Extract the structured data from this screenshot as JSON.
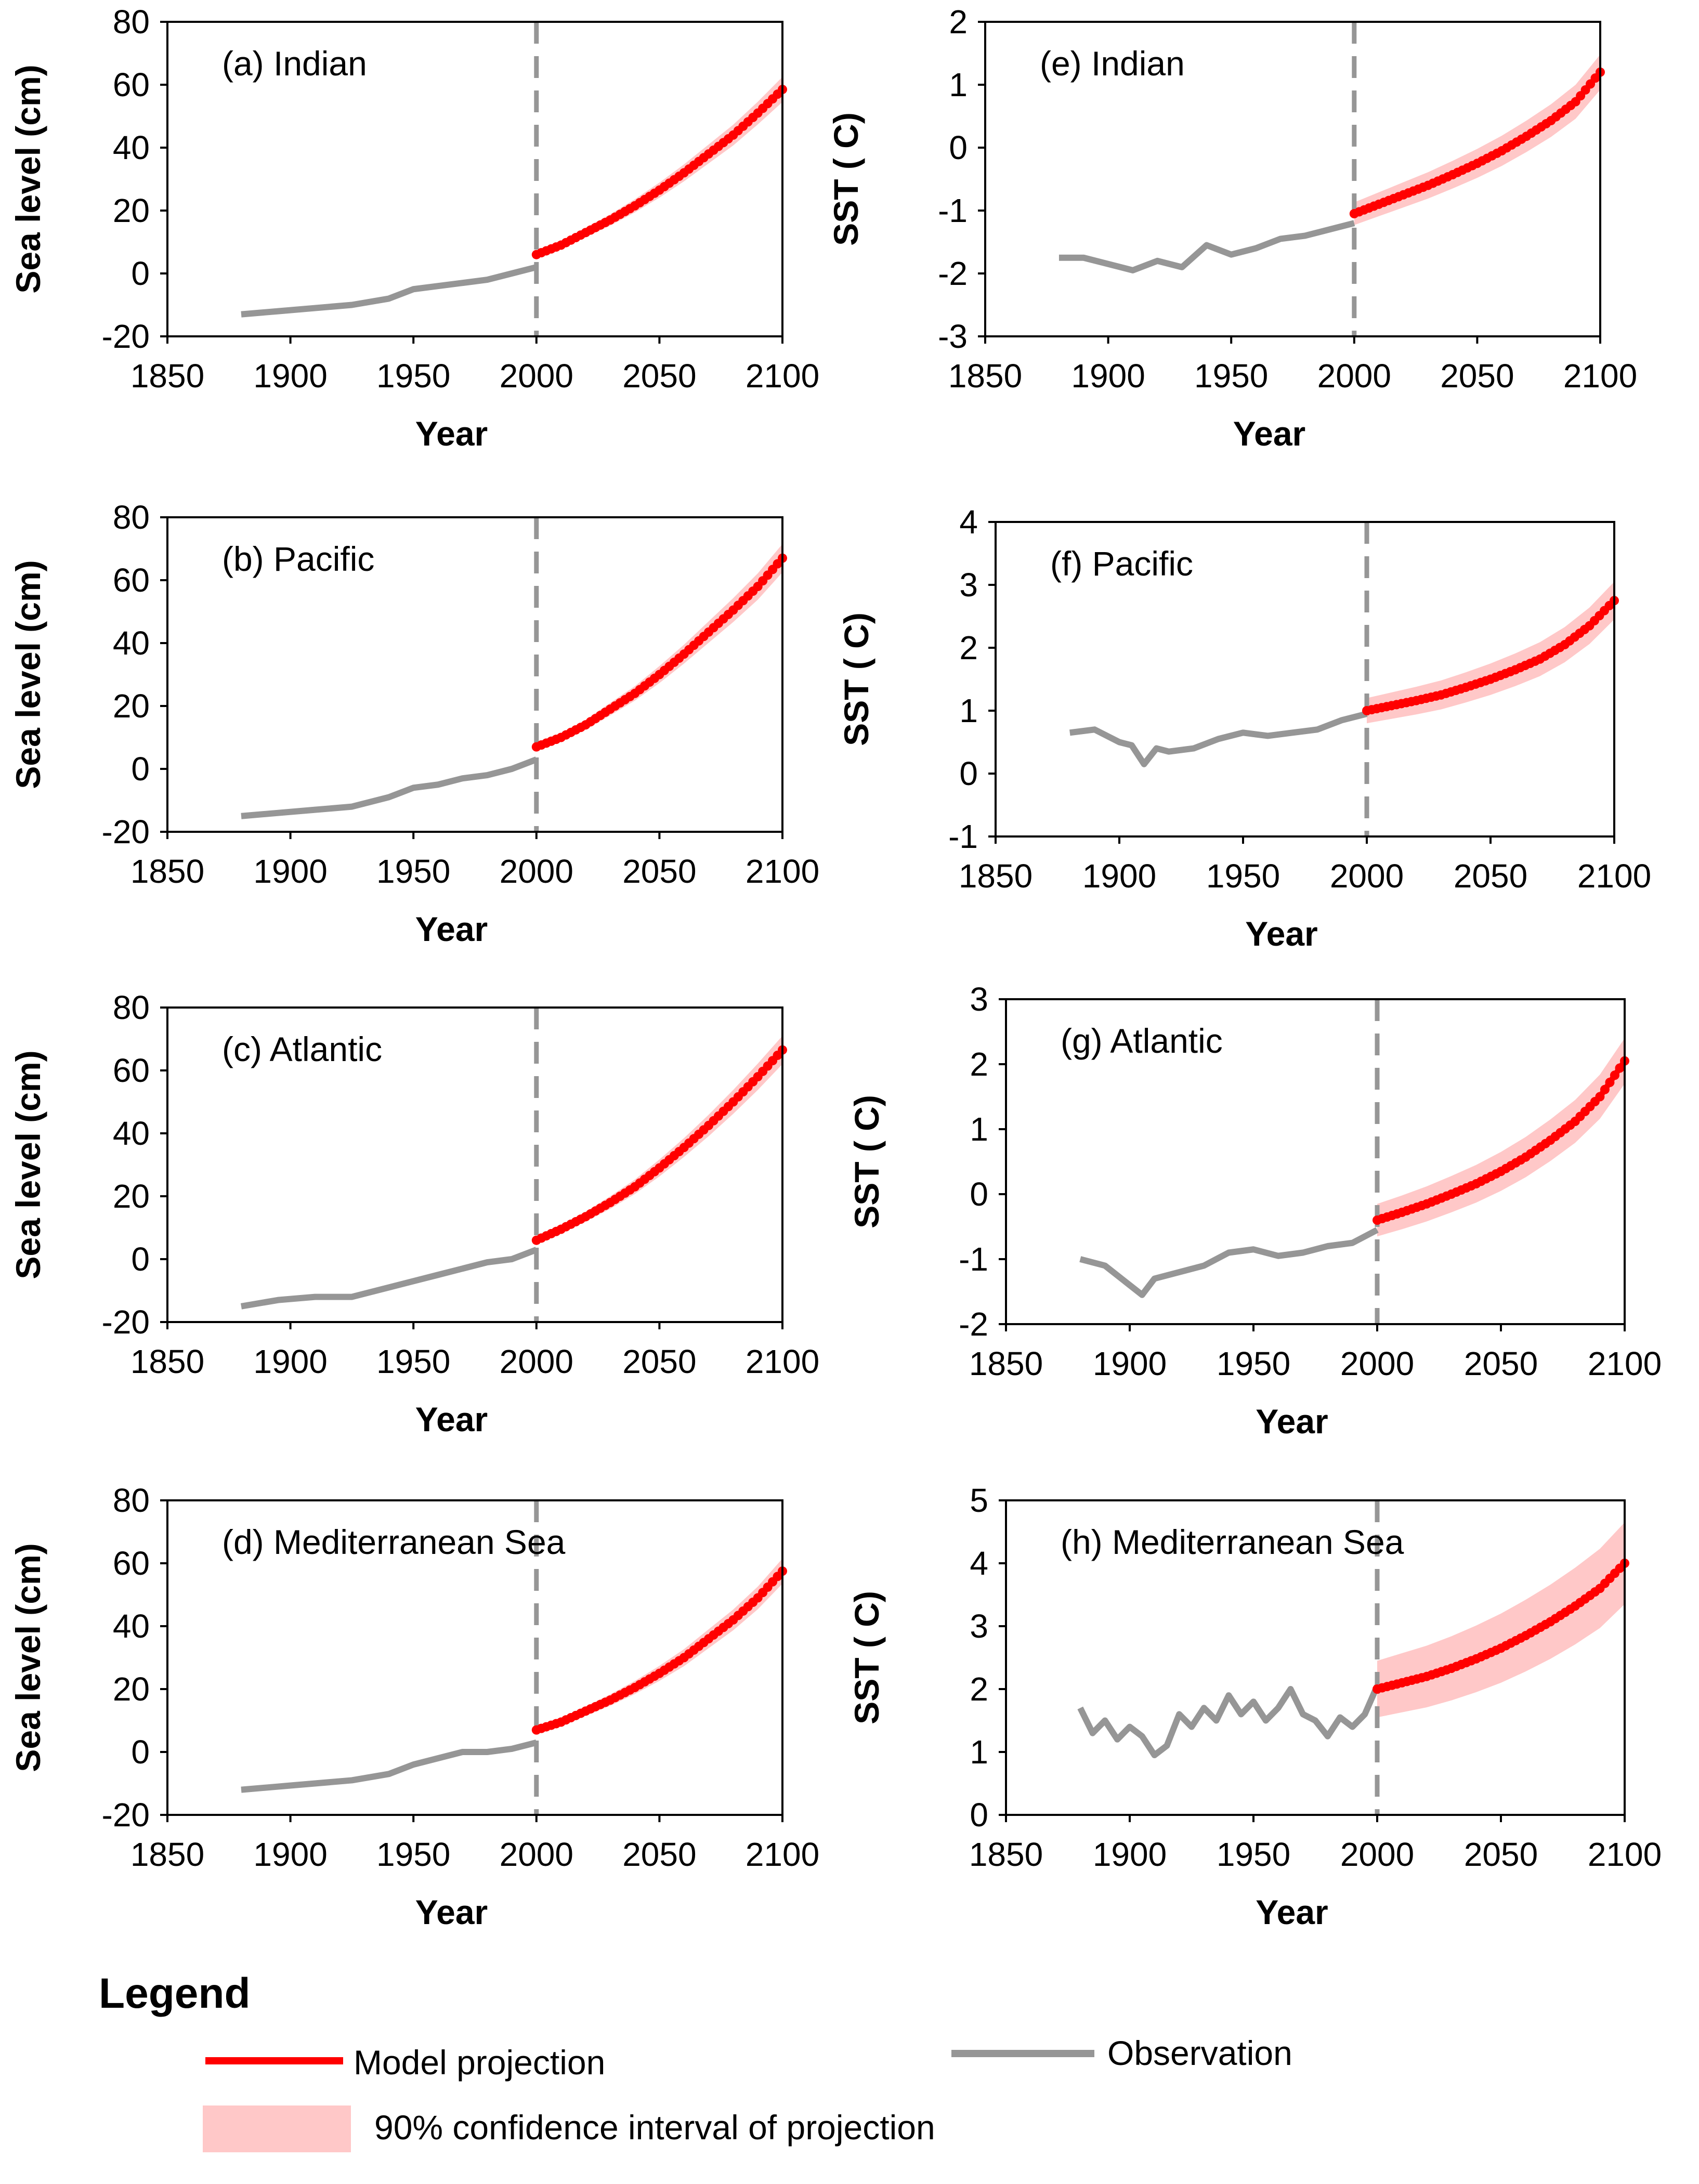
{
  "colors": {
    "model": "#ff0000",
    "ci": "#ffc8c8",
    "observation": "#969696",
    "axis": "#000000"
  },
  "legend": {
    "title": "Legend",
    "model": "Model projection",
    "observation": "Observation",
    "ci": "90% confidence interval of projection"
  },
  "chart_data": [
    {
      "id": "a",
      "type": "line",
      "label": "(a) Indian",
      "ylabel": "Sea level (cm)",
      "xlabel": "Year",
      "xlim": [
        1850,
        2100
      ],
      "ylim": [
        -20,
        80
      ],
      "xticks": [
        "1850",
        "1900",
        "1950",
        "2000",
        "2050",
        "2100"
      ],
      "yticks": [
        "-20",
        "0",
        "20",
        "40",
        "60",
        "80"
      ],
      "divider_x": 2000,
      "observation": {
        "x": [
          1880,
          1895,
          1910,
          1925,
          1940,
          1950,
          1960,
          1970,
          1980,
          1990,
          2000
        ],
        "y": [
          -13,
          -12,
          -11,
          -10,
          -8,
          -5,
          -4,
          -3,
          -2,
          0,
          2
        ]
      },
      "projection": {
        "x": [
          2000,
          2010,
          2020,
          2030,
          2040,
          2050,
          2060,
          2070,
          2080,
          2090,
          2100
        ],
        "y": [
          6,
          9,
          13,
          17,
          21.5,
          26.5,
          32,
          38,
          44,
          51,
          58.5
        ],
        "ci_halfwidth": [
          1,
          1.2,
          1.5,
          1.8,
          2.1,
          2.4,
          2.7,
          3,
          3.3,
          3.6,
          4
        ]
      }
    },
    {
      "id": "b",
      "type": "line",
      "label": "(b) Pacific",
      "ylabel": "Sea level (cm)",
      "xlabel": "Year",
      "xlim": [
        1850,
        2100
      ],
      "ylim": [
        -20,
        80
      ],
      "xticks": [
        "1850",
        "1900",
        "1950",
        "2000",
        "2050",
        "2100"
      ],
      "yticks": [
        "-20",
        "0",
        "20",
        "40",
        "60",
        "80"
      ],
      "divider_x": 2000,
      "observation": {
        "x": [
          1880,
          1895,
          1910,
          1925,
          1940,
          1950,
          1960,
          1970,
          1980,
          1990,
          2000
        ],
        "y": [
          -15,
          -14,
          -13,
          -12,
          -9,
          -6,
          -5,
          -3,
          -2,
          0,
          3
        ]
      },
      "projection": {
        "x": [
          2000,
          2010,
          2020,
          2030,
          2040,
          2050,
          2060,
          2070,
          2080,
          2090,
          2100
        ],
        "y": [
          7,
          10,
          14,
          19,
          24,
          30,
          36.5,
          43.5,
          50.5,
          58,
          67
        ],
        "ci_halfwidth": [
          1,
          1.3,
          1.6,
          2,
          2.3,
          2.7,
          3,
          3.4,
          3.8,
          4.2,
          4.5
        ]
      }
    },
    {
      "id": "c",
      "type": "line",
      "label": "(c) Atlantic",
      "ylabel": "Sea level (cm)",
      "xlabel": "Year",
      "xlim": [
        1850,
        2100
      ],
      "ylim": [
        -20,
        80
      ],
      "xticks": [
        "1850",
        "1900",
        "1950",
        "2000",
        "2050",
        "2100"
      ],
      "yticks": [
        "-20",
        "0",
        "20",
        "40",
        "60",
        "80"
      ],
      "divider_x": 2000,
      "observation": {
        "x": [
          1880,
          1895,
          1910,
          1925,
          1940,
          1950,
          1960,
          1970,
          1980,
          1990,
          2000
        ],
        "y": [
          -15,
          -13,
          -12,
          -12,
          -9,
          -7,
          -5,
          -3,
          -1,
          0,
          3
        ]
      },
      "projection": {
        "x": [
          2000,
          2010,
          2020,
          2030,
          2040,
          2050,
          2060,
          2070,
          2080,
          2090,
          2100
        ],
        "y": [
          6,
          9.5,
          13.5,
          18,
          23,
          29,
          35.5,
          42.5,
          50,
          58,
          66.5
        ],
        "ci_halfwidth": [
          1,
          1.3,
          1.6,
          2,
          2.3,
          2.7,
          3,
          3.4,
          3.8,
          4.2,
          4.5
        ]
      }
    },
    {
      "id": "d",
      "type": "line",
      "label": "(d) Mediterranean Sea",
      "ylabel": "Sea level (cm)",
      "xlabel": "Year",
      "xlim": [
        1850,
        2100
      ],
      "ylim": [
        -20,
        80
      ],
      "xticks": [
        "1850",
        "1900",
        "1950",
        "2000",
        "2050",
        "2100"
      ],
      "yticks": [
        "-20",
        "0",
        "20",
        "40",
        "60",
        "80"
      ],
      "divider_x": 2000,
      "observation": {
        "x": [
          1880,
          1895,
          1910,
          1925,
          1940,
          1950,
          1960,
          1970,
          1980,
          1990,
          2000
        ],
        "y": [
          -12,
          -11,
          -10,
          -9,
          -7,
          -4,
          -2,
          0,
          0,
          1,
          3
        ]
      },
      "projection": {
        "x": [
          2000,
          2010,
          2020,
          2030,
          2040,
          2050,
          2060,
          2070,
          2080,
          2090,
          2100
        ],
        "y": [
          7,
          9.5,
          13,
          16.5,
          20.5,
          25,
          30,
          36,
          42,
          49,
          57.5
        ],
        "ci_halfwidth": [
          1,
          1.2,
          1.5,
          1.8,
          2.1,
          2.4,
          2.7,
          3,
          3.3,
          3.6,
          4
        ]
      }
    },
    {
      "id": "e",
      "type": "line",
      "label": "(e) Indian",
      "ylabel": "SST ( C)",
      "xlabel": "Year",
      "xlim": [
        1850,
        2100
      ],
      "ylim": [
        -3,
        2
      ],
      "xticks": [
        "1850",
        "1900",
        "1950",
        "2000",
        "2050",
        "2100"
      ],
      "yticks": [
        "-3",
        "-2",
        "-1",
        "0",
        "1",
        "2"
      ],
      "divider_x": 2000,
      "observation": {
        "x": [
          1880,
          1890,
          1900,
          1910,
          1920,
          1930,
          1940,
          1950,
          1960,
          1970,
          1980,
          1990,
          2000
        ],
        "y": [
          -1.75,
          -1.75,
          -1.85,
          -1.95,
          -1.8,
          -1.9,
          -1.55,
          -1.7,
          -1.6,
          -1.45,
          -1.4,
          -1.3,
          -1.2
        ]
      },
      "projection": {
        "x": [
          2000,
          2010,
          2020,
          2030,
          2040,
          2050,
          2060,
          2070,
          2080,
          2090,
          2100
        ],
        "y": [
          -1.05,
          -0.9,
          -0.75,
          -0.6,
          -0.43,
          -0.25,
          -0.05,
          0.18,
          0.43,
          0.73,
          1.2
        ],
        "ci_halfwidth": [
          0.18,
          0.19,
          0.2,
          0.21,
          0.22,
          0.23,
          0.24,
          0.25,
          0.26,
          0.27,
          0.28
        ]
      }
    },
    {
      "id": "f",
      "type": "line",
      "label": "(f) Pacific",
      "ylabel": "SST ( C)",
      "xlabel": "Year",
      "xlim": [
        1850,
        2100
      ],
      "ylim": [
        -1,
        4
      ],
      "xticks": [
        "1850",
        "1900",
        "1950",
        "2000",
        "2050",
        "2100"
      ],
      "yticks": [
        "-1",
        "0",
        "1",
        "2",
        "3",
        "4"
      ],
      "divider_x": 2000,
      "observation": {
        "x": [
          1880,
          1890,
          1900,
          1905,
          1910,
          1915,
          1920,
          1930,
          1940,
          1950,
          1960,
          1970,
          1980,
          1990,
          2000
        ],
        "y": [
          0.65,
          0.7,
          0.5,
          0.45,
          0.15,
          0.4,
          0.35,
          0.4,
          0.55,
          0.65,
          0.6,
          0.65,
          0.7,
          0.85,
          0.95
        ]
      },
      "projection": {
        "x": [
          2000,
          2010,
          2020,
          2030,
          2040,
          2050,
          2060,
          2070,
          2080,
          2090,
          2100
        ],
        "y": [
          1,
          1.08,
          1.16,
          1.25,
          1.37,
          1.5,
          1.65,
          1.82,
          2.05,
          2.35,
          2.75
        ],
        "ci_halfwidth": [
          0.2,
          0.21,
          0.22,
          0.23,
          0.24,
          0.25,
          0.26,
          0.27,
          0.28,
          0.29,
          0.3
        ]
      }
    },
    {
      "id": "g",
      "type": "line",
      "label": "(g) Atlantic",
      "ylabel": "SST ( C)",
      "xlabel": "Year",
      "xlim": [
        1850,
        2100
      ],
      "ylim": [
        -2,
        3
      ],
      "xticks": [
        "1850",
        "1900",
        "1950",
        "2000",
        "2050",
        "2100"
      ],
      "yticks": [
        "-2",
        "-1",
        "0",
        "1",
        "2",
        "3"
      ],
      "divider_x": 2000,
      "observation": {
        "x": [
          1880,
          1890,
          1900,
          1905,
          1910,
          1920,
          1930,
          1940,
          1950,
          1960,
          1970,
          1980,
          1990,
          2000
        ],
        "y": [
          -1,
          -1.1,
          -1.4,
          -1.55,
          -1.3,
          -1.2,
          -1.1,
          -0.9,
          -0.85,
          -0.95,
          -0.9,
          -0.8,
          -0.75,
          -0.55
        ]
      },
      "projection": {
        "x": [
          2000,
          2010,
          2020,
          2030,
          2040,
          2050,
          2060,
          2070,
          2080,
          2090,
          2100
        ],
        "y": [
          -0.4,
          -0.28,
          -0.15,
          0,
          0.16,
          0.35,
          0.57,
          0.83,
          1.12,
          1.5,
          2.05
        ],
        "ci_halfwidth": [
          0.25,
          0.26,
          0.27,
          0.28,
          0.29,
          0.3,
          0.31,
          0.32,
          0.33,
          0.34,
          0.35
        ]
      }
    },
    {
      "id": "h",
      "type": "line",
      "label": "(h) Mediterranean Sea",
      "ylabel": "SST ( C)",
      "xlabel": "Year",
      "xlim": [
        1850,
        2100
      ],
      "ylim": [
        0,
        5
      ],
      "xticks": [
        "1850",
        "1900",
        "1950",
        "2000",
        "2050",
        "2100"
      ],
      "yticks": [
        "0",
        "1",
        "2",
        "3",
        "4",
        "5"
      ],
      "divider_x": 2000,
      "observation": {
        "x": [
          1880,
          1885,
          1890,
          1895,
          1900,
          1905,
          1910,
          1915,
          1920,
          1925,
          1930,
          1935,
          1940,
          1945,
          1950,
          1955,
          1960,
          1965,
          1970,
          1975,
          1980,
          1985,
          1990,
          1995,
          2000
        ],
        "y": [
          1.7,
          1.3,
          1.5,
          1.2,
          1.4,
          1.25,
          0.95,
          1.1,
          1.6,
          1.4,
          1.7,
          1.5,
          1.9,
          1.6,
          1.8,
          1.5,
          1.7,
          2,
          1.6,
          1.5,
          1.25,
          1.55,
          1.4,
          1.6,
          2.05
        ]
      },
      "projection": {
        "x": [
          2000,
          2010,
          2020,
          2030,
          2040,
          2050,
          2060,
          2070,
          2080,
          2090,
          2100
        ],
        "y": [
          2,
          2.1,
          2.2,
          2.33,
          2.48,
          2.65,
          2.85,
          3.07,
          3.32,
          3.6,
          4
        ],
        "ci_halfwidth": [
          0.45,
          0.47,
          0.49,
          0.51,
          0.53,
          0.55,
          0.57,
          0.59,
          0.61,
          0.63,
          0.65
        ]
      }
    }
  ]
}
